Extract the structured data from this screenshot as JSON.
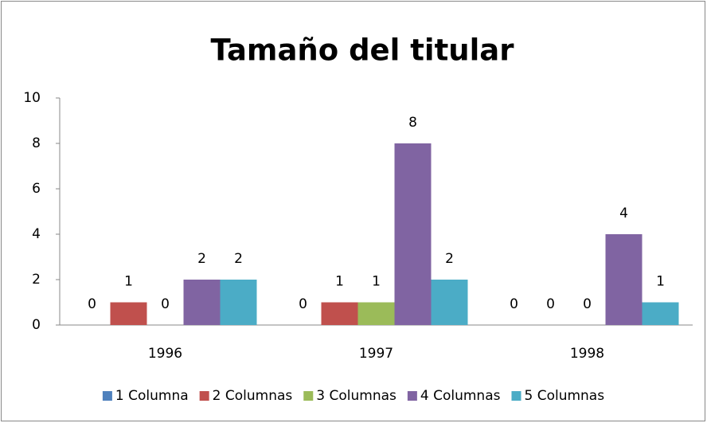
{
  "chart_data": {
    "type": "bar",
    "title": "Tamaño del titular",
    "categories": [
      "1996",
      "1997",
      "1998"
    ],
    "series": [
      {
        "name": "1 Columna",
        "color": "#4f81bd",
        "values": [
          0,
          0,
          0
        ]
      },
      {
        "name": "2 Columnas",
        "color": "#c0504d",
        "values": [
          1,
          1,
          0
        ]
      },
      {
        "name": "3 Columnas",
        "color": "#9bbb59",
        "values": [
          0,
          1,
          0
        ]
      },
      {
        "name": "4 Columnas",
        "color": "#8064a2",
        "values": [
          2,
          8,
          4
        ]
      },
      {
        "name": "5 Columnas",
        "color": "#4bacc6",
        "values": [
          2,
          2,
          1
        ]
      }
    ],
    "ylim": [
      0,
      10
    ],
    "yticks": [
      0,
      2,
      4,
      6,
      8,
      10
    ],
    "legend": "bottom"
  }
}
